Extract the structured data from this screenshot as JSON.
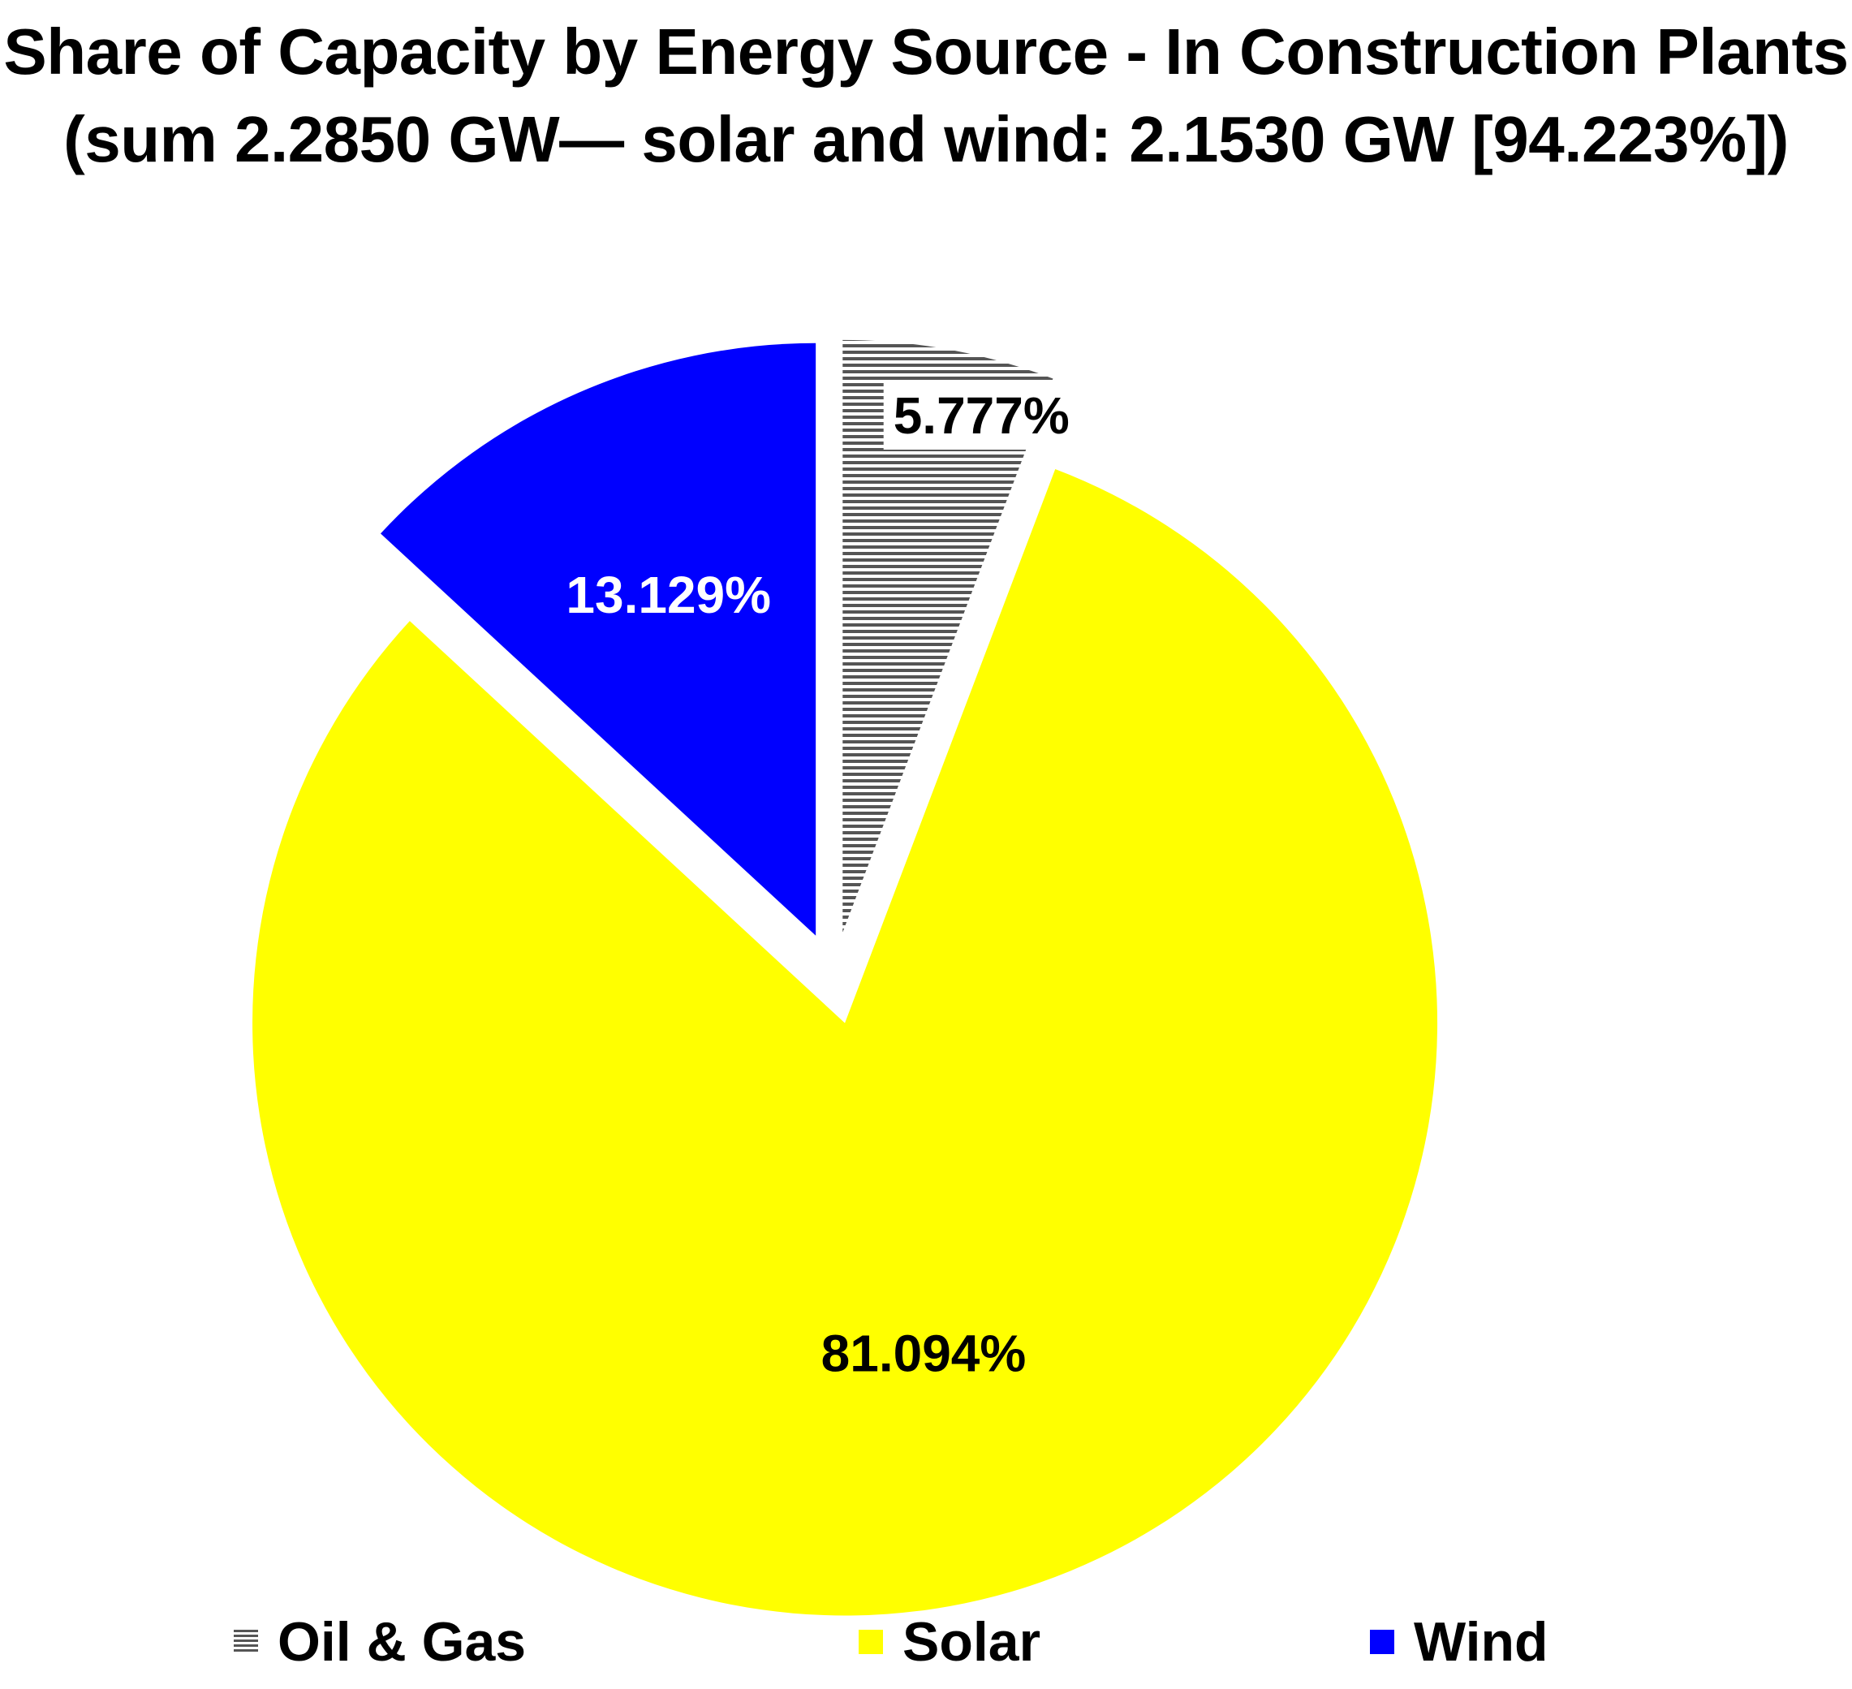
{
  "chart_data": {
    "type": "pie",
    "title": "Share of Capacity by Energy Source - In Construction Plants",
    "subtitle": "(sum 2.2850 GW— solar and wind: 2.1530 GW [94.223%])",
    "slices": [
      {
        "label": "Oil & Gas",
        "value": 5.777,
        "data_label": "5.777%",
        "color": "#555555",
        "pattern": "horizontal-stripes",
        "label_color": "#000000"
      },
      {
        "label": "Solar",
        "value": 81.094,
        "data_label": "81.094%",
        "color": "#FFFF00",
        "label_color": "#000000"
      },
      {
        "label": "Wind",
        "value": 13.129,
        "data_label": "13.129%",
        "color": "#0000FF",
        "label_color": "#FFFFFF"
      }
    ],
    "exploded": true,
    "legend_position": "bottom"
  }
}
